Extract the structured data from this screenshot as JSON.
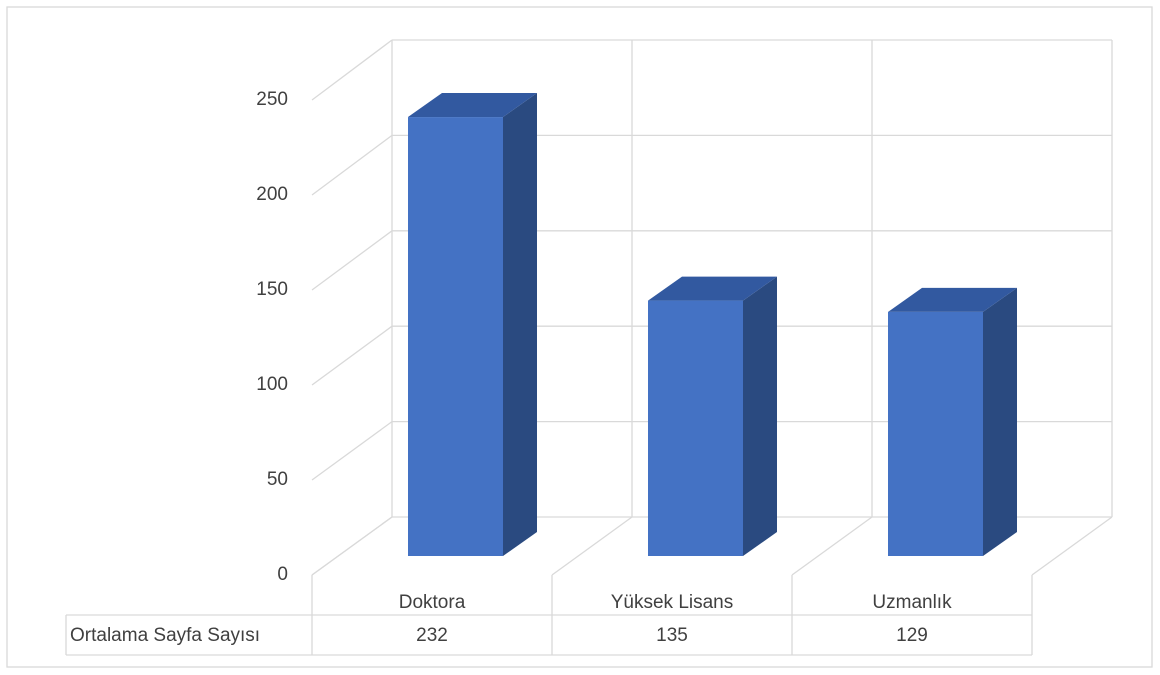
{
  "chart_data": {
    "type": "bar3d",
    "categories": [
      "Doktora",
      "Yüksek Lisans",
      "Uzmanlık"
    ],
    "series": [
      {
        "name": "Ortalama Sayfa Sayısı",
        "color": "#4472c4",
        "values": [
          232,
          135,
          129
        ]
      }
    ],
    "ylim": [
      0,
      250
    ],
    "yticks": [
      0,
      50,
      100,
      150,
      200,
      250
    ],
    "grid": true,
    "data_table": true
  }
}
